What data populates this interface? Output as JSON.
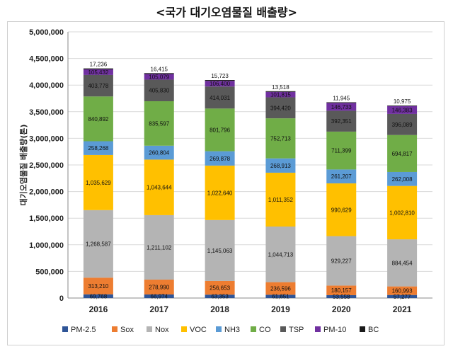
{
  "title": "<국가 대기오염물질 배출량>",
  "chart_data": {
    "type": "bar",
    "stacked": true,
    "categories": [
      "2016",
      "2017",
      "2018",
      "2019",
      "2020",
      "2021"
    ],
    "ylabel": "대기오염물질 배출량(톤)",
    "ylim": [
      0,
      5000000
    ],
    "yticks": [
      "0",
      "500,000",
      "1,000,000",
      "1,500,000",
      "2,000,000",
      "2,500,000",
      "3,000,000",
      "3,500,000",
      "4,000,000",
      "4,500,000",
      "5,000,000"
    ],
    "grid": true,
    "legend_position": "bottom",
    "series": [
      {
        "name": "PM-2.5",
        "color": "#2f5597",
        "values": [
          69768,
          66974,
          63353,
          61651,
          53558,
          57277
        ],
        "labels": [
          "69,768",
          "66,974",
          "63,353",
          "61,651",
          "53,558",
          "57,277"
        ]
      },
      {
        "name": "Sox",
        "color": "#ed7d31",
        "values": [
          313210,
          278990,
          256653,
          236596,
          180157,
          160993
        ],
        "labels": [
          "313,210",
          "278,990",
          "256,653",
          "236,596",
          "180,157",
          "160,993"
        ]
      },
      {
        "name": "Nox",
        "color": "#b4b4b4",
        "values": [
          1268587,
          1211102,
          1145063,
          1044713,
          929227,
          884454
        ],
        "labels": [
          "1,268,587",
          "1,211,102",
          "1,145,063",
          "1,044,713",
          "929,227",
          "884,454"
        ]
      },
      {
        "name": "VOC",
        "color": "#ffc000",
        "values": [
          1035629,
          1043644,
          1022640,
          1011352,
          990629,
          1002810
        ],
        "labels": [
          "1,035,629",
          "1,043,644",
          "1,022,640",
          "1,011,352",
          "990,629",
          "1,002,810"
        ]
      },
      {
        "name": "NH3",
        "color": "#5b9bd5",
        "values": [
          258268,
          260804,
          269878,
          268913,
          261207,
          262008
        ],
        "labels": [
          "258,268",
          "260,804",
          "269,878",
          "268,913",
          "261,207",
          "262,008"
        ]
      },
      {
        "name": "CO",
        "color": "#70ad47",
        "values": [
          840892,
          835597,
          801796,
          752713,
          711399,
          694817
        ],
        "labels": [
          "840,892",
          "835,597",
          "801,796",
          "752,713",
          "711,399",
          "694,817"
        ]
      },
      {
        "name": "TSP",
        "color": "#595959",
        "values": [
          403778,
          405830,
          414031,
          394420,
          392351,
          396089
        ],
        "labels": [
          "403,778",
          "405,830",
          "414,031",
          "394,420",
          "392,351",
          "396,089"
        ]
      },
      {
        "name": "PM-10",
        "color": "#7030a0",
        "values": [
          105432,
          105079,
          106400,
          101815,
          146733,
          146383
        ],
        "labels": [
          "105,432",
          "105,079",
          "106,400",
          "101,815",
          "146,733",
          "146,383"
        ]
      },
      {
        "name": "BC",
        "color": "#1a1a1a",
        "values": [
          17236,
          16415,
          15723,
          13518,
          11945,
          10975
        ],
        "labels": [
          "17,236",
          "16,415",
          "15,723",
          "13,518",
          "11,945",
          "10,975"
        ]
      }
    ]
  }
}
